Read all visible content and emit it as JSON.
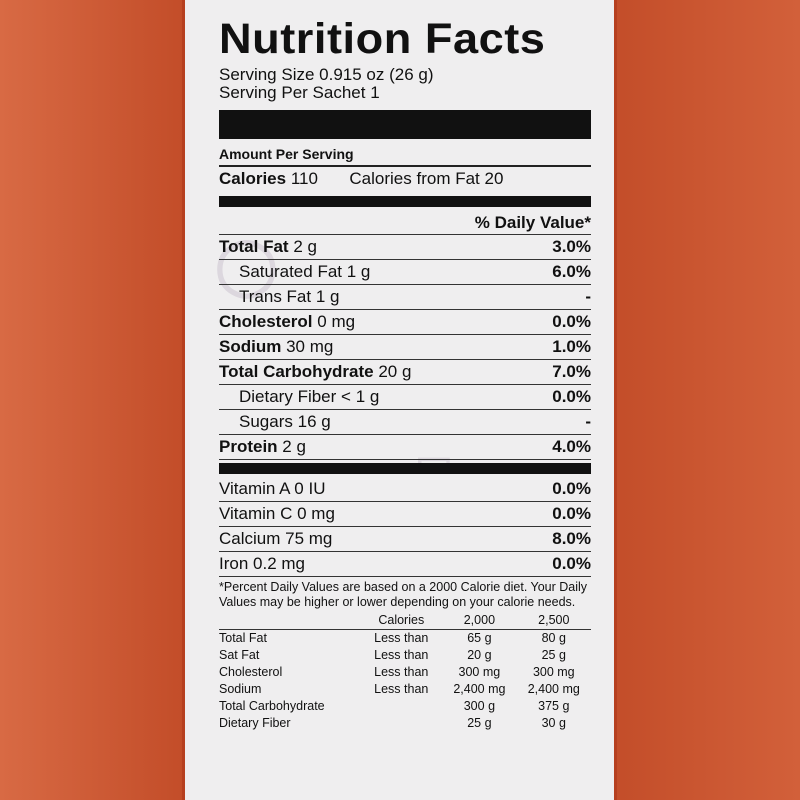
{
  "label": {
    "title": "Nutrition Facts",
    "serving_size": "Serving Size 0.915 oz (26 g)",
    "servings_per": "Serving Per Sachet 1",
    "amount_per_serving": "Amount Per Serving",
    "calories_label": "Calories",
    "calories_value": "110",
    "calories_from_fat": "Calories from Fat 20",
    "dv_header": "% Daily Value*",
    "nutrients": [
      {
        "name": "Total Fat",
        "amount": "2 g",
        "dv": "3.0%"
      },
      {
        "name": "Saturated Fat",
        "amount": "1 g",
        "dv": "6.0%"
      },
      {
        "name": "Trans Fat",
        "amount": "1 g",
        "dv": "-"
      },
      {
        "name": "Cholesterol",
        "amount": "0 mg",
        "dv": "0.0%"
      },
      {
        "name": "Sodium",
        "amount": "30 mg",
        "dv": "1.0%"
      },
      {
        "name": "Total Carbohydrate",
        "amount": "20 g",
        "dv": "7.0%"
      },
      {
        "name": "Dietary Fiber",
        "amount": "< 1 g",
        "dv": "0.0%"
      },
      {
        "name": "Sugars",
        "amount": "16 g",
        "dv": "-"
      },
      {
        "name": "Protein",
        "amount": "2 g",
        "dv": "4.0%"
      }
    ],
    "vitamins": [
      {
        "name": "Vitamin A 0 IU",
        "dv": "0.0%"
      },
      {
        "name": "Vitamin C 0 mg",
        "dv": "0.0%"
      },
      {
        "name": "Calcium 75 mg",
        "dv": "8.0%"
      },
      {
        "name": "Iron 0.2 mg",
        "dv": "0.0%"
      }
    ],
    "footnote": "*Percent Daily Values are based on a 2000 Calorie diet. Your Daily Values may be higher or lower depending on your calorie needs.",
    "ref_header": {
      "calories": "Calories",
      "c1": "2,000",
      "c2": "2,500"
    },
    "ref_rows": [
      {
        "name": "Total Fat",
        "cmp": "Less than",
        "c1": "65 g",
        "c2": "80 g"
      },
      {
        "name": "Sat Fat",
        "cmp": "Less than",
        "c1": "20 g",
        "c2": "25 g"
      },
      {
        "name": "Cholesterol",
        "cmp": "Less than",
        "c1": "300 mg",
        "c2": "300 mg"
      },
      {
        "name": "Sodium",
        "cmp": "Less than",
        "c1": "2,400 mg",
        "c2": "2,400 mg"
      },
      {
        "name": "Total Carbohydrate",
        "cmp": "",
        "c1": "300 g",
        "c2": "375 g"
      },
      {
        "name": "Dietary Fiber",
        "cmp": "",
        "c1": "25 g",
        "c2": "30 g"
      }
    ]
  },
  "colors": {
    "package": "#c9552f",
    "panel": "#efeeef",
    "ink": "#111111"
  }
}
